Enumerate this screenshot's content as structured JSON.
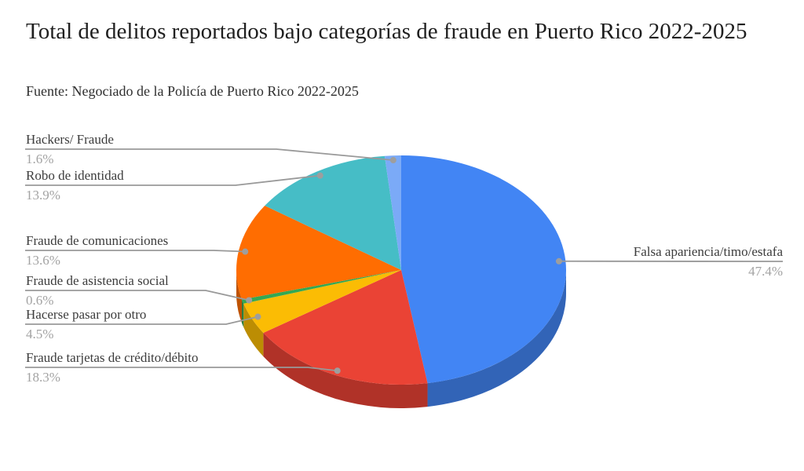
{
  "header": {
    "title": "Total de delitos reportados bajo categorías de fraude en Puerto Rico 2022-2025",
    "subtitle": "Fuente: Negociado de la Policía de Puerto Rico 2022-2025"
  },
  "chart_data": {
    "type": "pie",
    "is_3d": true,
    "title": "Total de delitos reportados bajo categorías de fraude en Puerto Rico 2022-2025",
    "source": "Fuente: Negociado de la Policía de Puerto Rico 2022-2025",
    "legend_position": "callout-labels",
    "background": "#ffffff",
    "start_angle_deg": 0,
    "direction": "clockwise-from-top",
    "slices": [
      {
        "label": "Falsa apariencia/timo/estafa",
        "value": 47.4,
        "display": "47.4%",
        "color": "#4285F4"
      },
      {
        "label": "Fraude tarjetas de crédito/débito",
        "value": 18.3,
        "display": "18.3%",
        "color": "#EA4335"
      },
      {
        "label": "Hacerse pasar por otro",
        "value": 4.5,
        "display": "4.5%",
        "color": "#FBBC04"
      },
      {
        "label": "Fraude de asistencia social",
        "value": 0.6,
        "display": "0.6%",
        "color": "#34A853"
      },
      {
        "label": "Fraude de comunicaciones",
        "value": 13.6,
        "display": "13.6%",
        "color": "#FF6D01"
      },
      {
        "label": "Robo de identidad",
        "value": 13.9,
        "display": "13.9%",
        "color": "#46BDC6"
      },
      {
        "label": "Hackers/ Fraude",
        "value": 1.6,
        "display": "1.6%",
        "color": "#7BAAF7"
      }
    ],
    "style_colors": {
      "label_text": "#3c3c3c",
      "percent_text": "#a3a3a3",
      "leader_line": "#999999",
      "leader_dot": "#9e9e9e"
    }
  }
}
